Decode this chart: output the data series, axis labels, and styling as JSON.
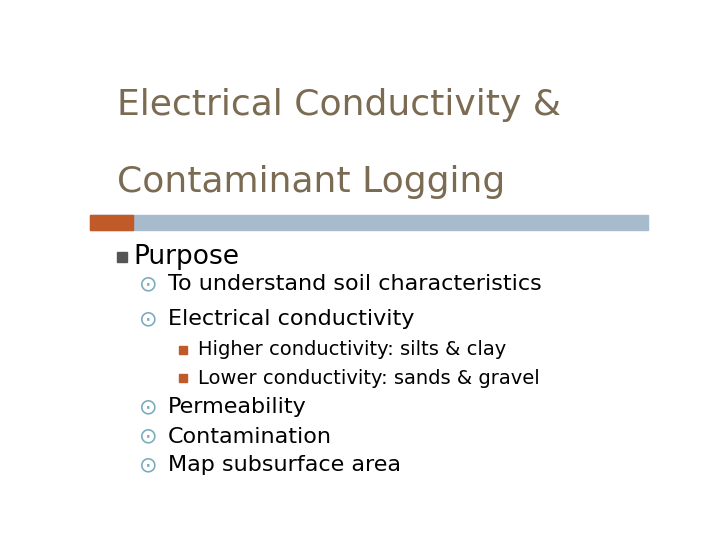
{
  "title_line1": "Electrical Conductivity &",
  "title_line2": "Contaminant Logging",
  "title_color": "#7B6B52",
  "title_fontsize": 26,
  "header_bar_color": "#A8BBCC",
  "header_bar_left_color": "#C05A28",
  "bg_color": "#FFFFFF",
  "level1_label": "Purpose",
  "level1_fontsize": 19,
  "level1_bullet_color": "#555555",
  "level2_bullet": "⊙",
  "level2_fontsize": 16,
  "level2_bullet_color": "#7AAABB",
  "level3_fontsize": 14,
  "level3_bullet_color": "#C05A28",
  "items": [
    {
      "level": 2,
      "text": "To understand soil characteristics"
    },
    {
      "level": 2,
      "text": "Electrical conductivity"
    },
    {
      "level": 3,
      "text": "Higher conductivity: silts & clay"
    },
    {
      "level": 3,
      "text": "Lower conductivity: sands & gravel"
    },
    {
      "level": 2,
      "text": "Permeability"
    },
    {
      "level": 2,
      "text": "Contamination"
    },
    {
      "level": 2,
      "text": "Map subsurface area"
    }
  ]
}
